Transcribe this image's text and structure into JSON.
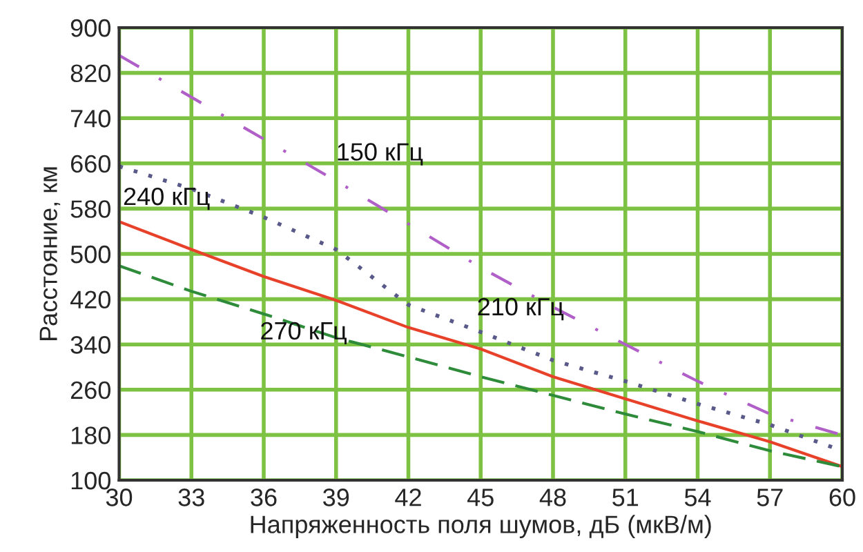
{
  "chart_data": {
    "type": "line",
    "xlabel": "Напряженность поля шумов, дБ (мкВ/м)",
    "ylabel": "Расстояние, км",
    "x": [
      30,
      33,
      36,
      39,
      42,
      45,
      48,
      51,
      54,
      57,
      60
    ],
    "series": [
      {
        "name": "150 кГц",
        "color": "#b05fc8",
        "line_style": "dashdot",
        "values": [
          851,
          777,
          703,
          629,
          553,
          476,
          406,
          340,
          275,
          217,
          180
        ]
      },
      {
        "name": "210 кГц",
        "color": "#5a5a8a",
        "line_style": "dotted",
        "values": [
          655,
          615,
          565,
          508,
          410,
          362,
          312,
          275,
          235,
          198,
          152
        ]
      },
      {
        "name": "240 кГц",
        "color": "#e8412a",
        "line_style": "solid",
        "values": [
          557,
          508,
          460,
          418,
          370,
          332,
          283,
          244,
          205,
          168,
          124
        ]
      },
      {
        "name": "270 кГц",
        "color": "#2e8b3a",
        "line_style": "dashed",
        "values": [
          479,
          434,
          394,
          352,
          318,
          283,
          250,
          217,
          186,
          152,
          124
        ]
      }
    ],
    "xlim": [
      30,
      60
    ],
    "xticks": [
      30,
      33,
      36,
      39,
      42,
      45,
      48,
      51,
      54,
      57,
      60
    ],
    "ylim": [
      100,
      900
    ],
    "yticks": [
      100,
      180,
      260,
      340,
      420,
      500,
      580,
      660,
      740,
      820,
      900
    ],
    "grid": true,
    "legend": false
  }
}
